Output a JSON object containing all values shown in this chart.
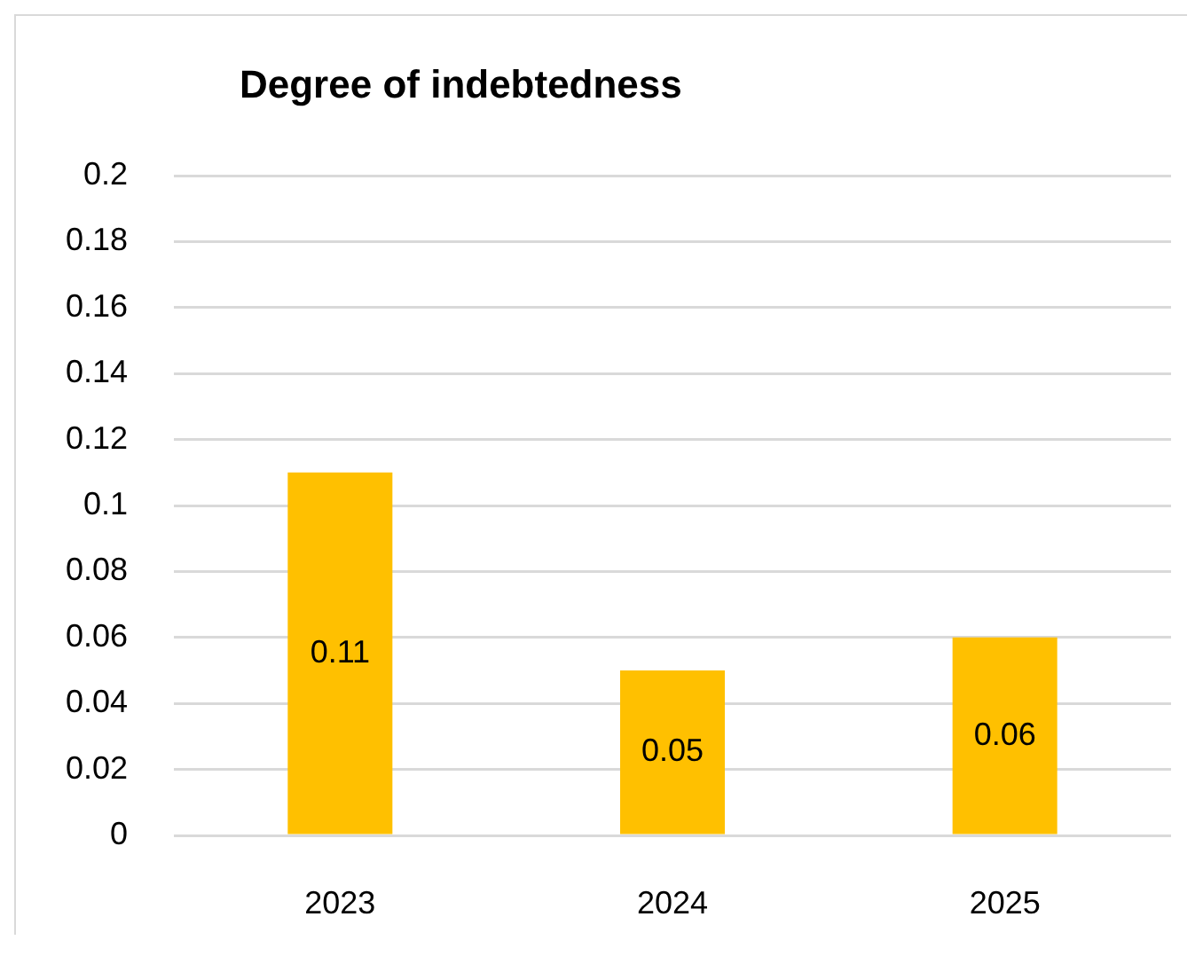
{
  "chart_data": {
    "type": "bar",
    "title": "Degree of indebtedness",
    "categories": [
      "2023",
      "2024",
      "2025"
    ],
    "values": [
      0.11,
      0.05,
      0.06
    ],
    "color": "#ffc000",
    "ylim": [
      0,
      0.2
    ],
    "yticks": [
      0,
      0.02,
      0.04,
      0.06,
      0.08,
      0.1,
      0.12,
      0.14,
      0.16,
      0.18,
      0.2
    ],
    "grid": "y",
    "data_labels": true
  }
}
